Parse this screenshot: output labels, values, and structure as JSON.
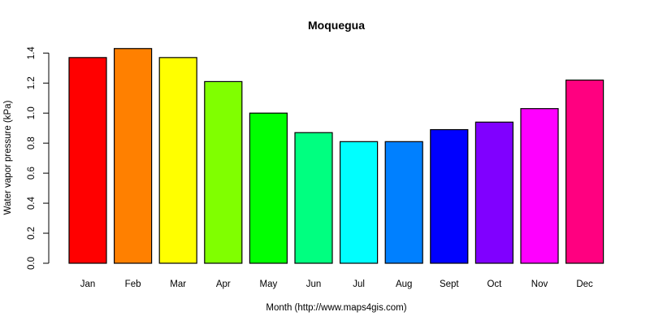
{
  "chart_data": {
    "type": "bar",
    "title": "Moquegua",
    "xlabel": "Month (http://www.maps4gis.com)",
    "ylabel": "Water vapor pressure (kPa)",
    "ylim": [
      0,
      1.4
    ],
    "yticks": [
      "0.0",
      "0.2",
      "0.4",
      "0.6",
      "0.8",
      "1.0",
      "1.2",
      "1.4"
    ],
    "grid": false,
    "legend": null,
    "categories": [
      "Jan",
      "Feb",
      "Mar",
      "Apr",
      "May",
      "Jun",
      "Jul",
      "Aug",
      "Sept",
      "Oct",
      "Nov",
      "Dec"
    ],
    "values": [
      1.37,
      1.43,
      1.37,
      1.21,
      1.0,
      0.87,
      0.81,
      0.81,
      0.89,
      0.94,
      1.03,
      1.22
    ],
    "colors": [
      "#FF0000",
      "#FF8000",
      "#FFFF00",
      "#80FF00",
      "#00FF00",
      "#00FF80",
      "#00FFFF",
      "#0080FF",
      "#0000FF",
      "#8000FF",
      "#FF00FF",
      "#FF0080"
    ]
  }
}
